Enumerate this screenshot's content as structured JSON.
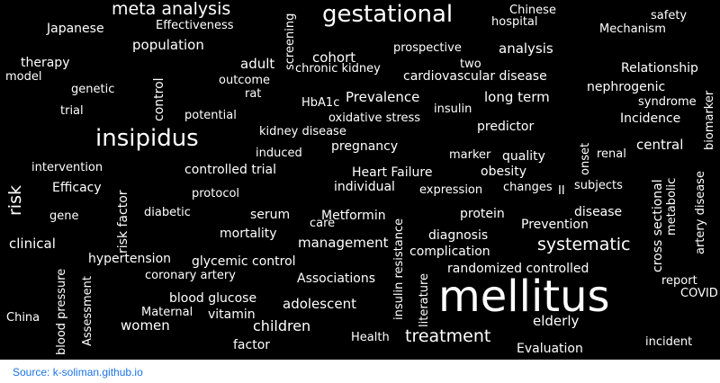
{
  "cloud": {
    "background": "#000000",
    "text_color": "#ffffff",
    "words": [
      "mellitus",
      "gestational",
      "insipidus",
      "meta analysis",
      "risk",
      "systematic",
      "treatment",
      "Prevalence",
      "population",
      "cohort",
      "analysis",
      "Chinese",
      "hospital",
      "safety",
      "Japanese",
      "Effectiveness",
      "Mechanism",
      "screening",
      "prospective",
      "therapy",
      "two",
      "chronic kidney",
      "cardiovascular disease",
      "Relationship",
      "model",
      "adult",
      "outcome",
      "genetic",
      "nephrogenic",
      "rat",
      "syndrome",
      "trial",
      "control",
      "HbA1c",
      "long term",
      "insulin",
      "oxidative stress",
      "Incidence",
      "biomarker",
      "potential",
      "kidney disease",
      "predictor",
      "central",
      "pregnancy",
      "onset",
      "renal",
      "induced",
      "marker",
      "quality",
      "intervention",
      "controlled trial",
      "Heart Failure",
      "obesity",
      "risk factor",
      "individual",
      "expression",
      "changes",
      "II",
      "subjects",
      "Efficacy",
      "protocol",
      "cross sectional",
      "metabolic",
      "artery disease",
      "diabetic",
      "serum",
      "care",
      "Metformin",
      "protein",
      "disease",
      "gene",
      "insulin resistance",
      "Prevention",
      "mortality",
      "diagnosis",
      "clinical",
      "management",
      "complication",
      "hypertension",
      "glycemic control",
      "randomized controlled",
      "blood pressure",
      "coronary artery",
      "Associations",
      "literature",
      "report",
      "COVID",
      "Assessment",
      "blood glucose",
      "adolescent",
      "Maternal",
      "vitamin",
      "China",
      "women",
      "children",
      "elderly",
      "Health",
      "factor",
      "Evaluation",
      "incident"
    ]
  },
  "footer": {
    "source": "Source: k-soliman.github.io",
    "link_color": "#1a73e8"
  }
}
